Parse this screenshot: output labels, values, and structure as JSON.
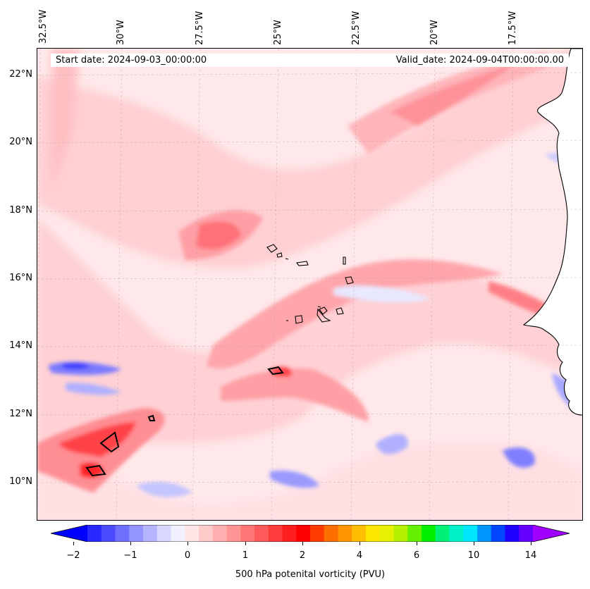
{
  "header": {
    "start_date": "Start date: 2024-09-03_00:00:00",
    "valid_date": "Valid_date: 2024-09-04T00:00:00.00"
  },
  "axes": {
    "lon_labels": [
      "32.5°W",
      "30°W",
      "27.5°W",
      "25°W",
      "22.5°W",
      "20°W",
      "17.5°W"
    ],
    "lat_labels": [
      "22°N",
      "20°N",
      "18°N",
      "16°N",
      "14°N",
      "12°N",
      "10°N"
    ]
  },
  "colorbar": {
    "label": "500 hPa potenital vorticity (PVU)",
    "ticks": [
      "−2",
      "−1",
      "0",
      "1",
      "2",
      "4",
      "6",
      "10",
      "14"
    ],
    "colors": [
      "#0000ff",
      "#2828ff",
      "#4c4cff",
      "#7070ff",
      "#9494ff",
      "#b4b4ff",
      "#d8d8ff",
      "#f0f0ff",
      "#ffe6e6",
      "#ffcccc",
      "#ffb0b0",
      "#ff9494",
      "#ff7676",
      "#ff5a5a",
      "#ff3c3c",
      "#ff1e1e",
      "#ff0000",
      "#ff3c00",
      "#ff6e00",
      "#ff9600",
      "#ffbe00",
      "#ffe600",
      "#e6f000",
      "#b4f000",
      "#64f000",
      "#00f000",
      "#00f078",
      "#00f0c8",
      "#00e6ff",
      "#0096ff",
      "#0046ff",
      "#1e00ff",
      "#6400ff",
      "#a000ff"
    ]
  }
}
